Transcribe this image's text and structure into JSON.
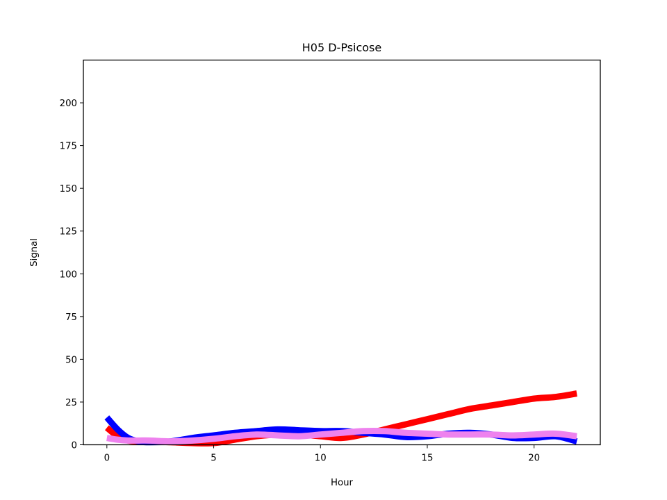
{
  "chart_data": {
    "type": "line",
    "title": "H05 D-Psicose",
    "xlabel": "Hour",
    "ylabel": "Signal",
    "xlim": [
      -1.1,
      23.1
    ],
    "ylim": [
      0,
      225
    ],
    "xticks": [
      0,
      5,
      10,
      15,
      20
    ],
    "yticks": [
      0,
      25,
      50,
      75,
      100,
      125,
      150,
      175,
      200
    ],
    "grid": false,
    "legend": "none",
    "series": [
      {
        "color": "#ff0000",
        "x": [
          0,
          0.5,
          1,
          1.5,
          2,
          3,
          4,
          5,
          6,
          7,
          8,
          9,
          10,
          11,
          12,
          13,
          14,
          15,
          16,
          17,
          18,
          19,
          20,
          21,
          22
        ],
        "y": [
          10,
          5,
          2.5,
          2,
          2,
          1.5,
          1,
          1,
          3,
          5,
          6,
          6,
          5,
          4,
          6,
          9,
          12,
          15,
          18,
          21,
          23,
          25,
          27,
          28,
          30
        ]
      },
      {
        "color": "#0000ff",
        "x": [
          0,
          0.5,
          1,
          1.5,
          2,
          3,
          4,
          5,
          6,
          7,
          8,
          9,
          10,
          11,
          12,
          13,
          14,
          15,
          16,
          17,
          18,
          19,
          20,
          21,
          22
        ],
        "y": [
          16,
          9,
          4,
          2,
          1.5,
          2,
          4,
          5.5,
          7,
          8,
          9,
          8.5,
          8,
          8,
          7,
          6,
          4.5,
          5,
          6.5,
          7,
          6,
          4,
          4,
          5,
          2
        ]
      },
      {
        "color": "#ee82ee",
        "x": [
          0,
          0.5,
          1,
          1.5,
          2,
          3,
          4,
          5,
          6,
          7,
          8,
          9,
          10,
          11,
          12,
          13,
          14,
          15,
          16,
          17,
          18,
          19,
          20,
          21,
          22
        ],
        "y": [
          4,
          3,
          2.5,
          2.5,
          2.5,
          2,
          2.5,
          3.5,
          5,
          6,
          5.5,
          5,
          6,
          7,
          8,
          8,
          7,
          6.5,
          6,
          6,
          6,
          5.5,
          6,
          6.5,
          5
        ]
      }
    ]
  }
}
